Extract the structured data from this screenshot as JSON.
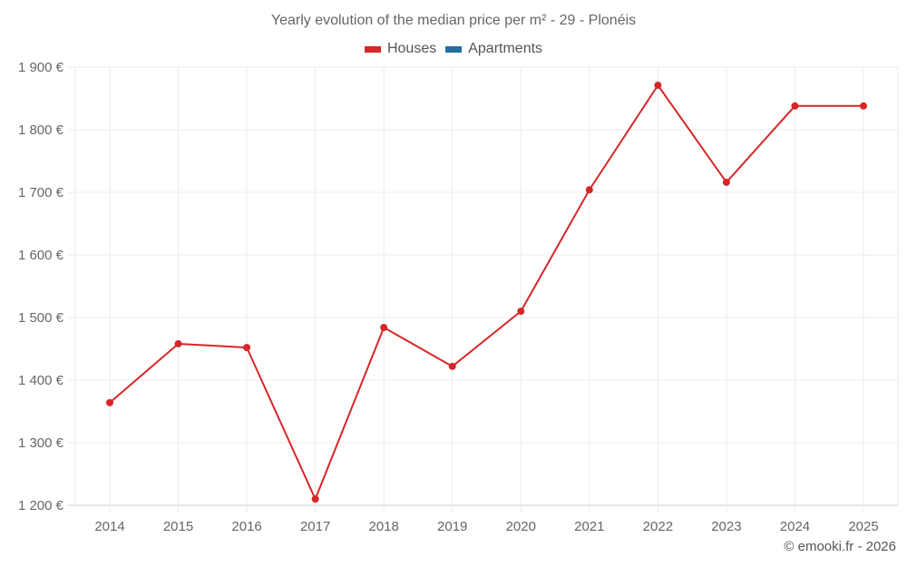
{
  "title": "Yearly evolution of the median price per m² - 29 - Plonéis",
  "legend": [
    {
      "label": "Houses",
      "color": "#d62728"
    },
    {
      "label": "Apartments",
      "color": "#1f6fa3"
    }
  ],
  "credit": "© emooki.fr - 2026",
  "chart_data": {
    "type": "line",
    "title": "Yearly evolution of the median price per m² - 29 - Plonéis",
    "xlabel": "",
    "ylabel": "",
    "categories": [
      "2014",
      "2015",
      "2016",
      "2017",
      "2018",
      "2019",
      "2020",
      "2021",
      "2022",
      "2023",
      "2024",
      "2025"
    ],
    "series": [
      {
        "name": "Houses",
        "color": "#d62728",
        "values": [
          1364,
          1458,
          1452,
          1210,
          1484,
          1422,
          1510,
          1704,
          1871,
          1716,
          1838,
          1838
        ]
      },
      {
        "name": "Apartments",
        "color": "#1f6fa3",
        "values": []
      }
    ],
    "ylim": [
      1200,
      1900
    ],
    "yticks": [
      1200,
      1300,
      1400,
      1500,
      1600,
      1700,
      1800,
      1900
    ],
    "ytick_labels": [
      "1 200 €",
      "1 300 €",
      "1 400 €",
      "1 500 €",
      "1 600 €",
      "1 700 €",
      "1 800 €",
      "1 900 €"
    ],
    "grid": true,
    "legend_position": "top"
  }
}
